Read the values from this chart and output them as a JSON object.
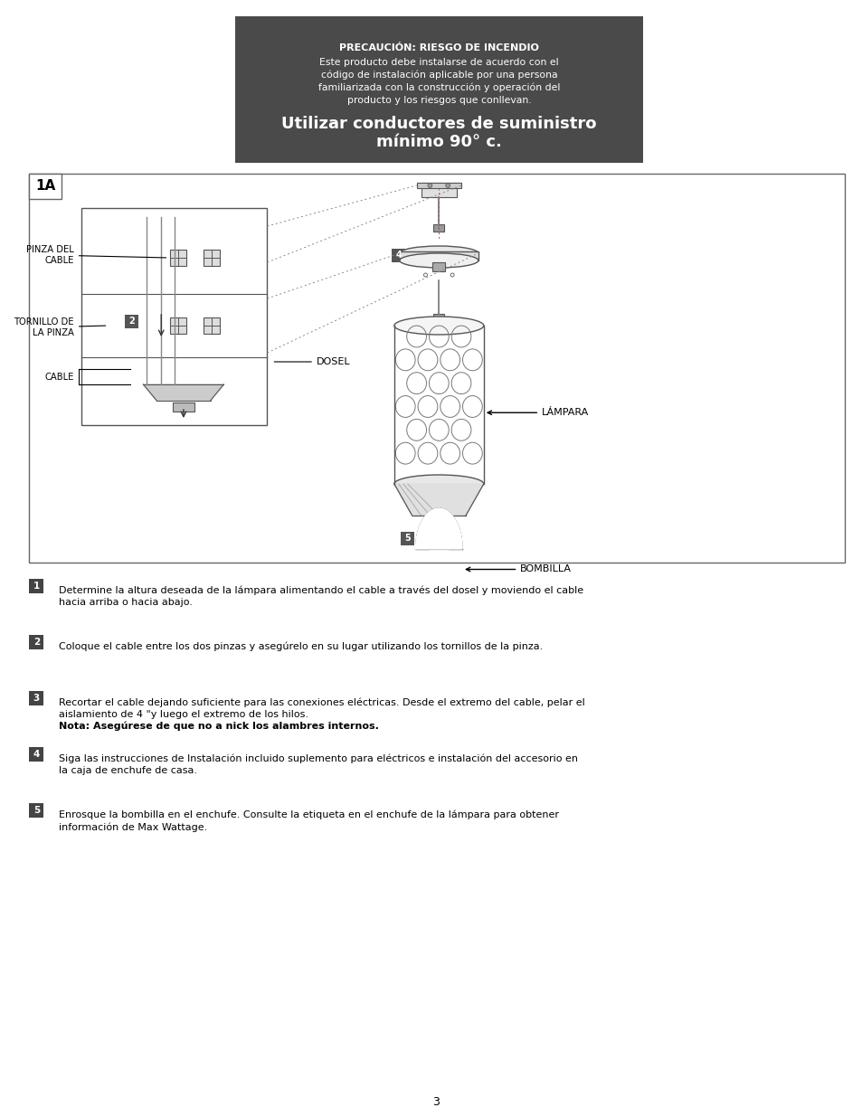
{
  "bg_color": "#ffffff",
  "header_box_color": "#4a4a4a",
  "header_title": "PRECAUCIÓN: RIESGO DE INCENDIO",
  "header_body_line1": "Este producto debe instalarse de acuerdo con el",
  "header_body_line2": "código de instalación aplicable por una persona",
  "header_body_line3": "familiarizada con la construcción y operación del",
  "header_body_line4": "producto y los riesgos que conllevan.",
  "header_large_line1": "Utilizar conductores de suministro",
  "header_large_line2": "mínimo 90° c.",
  "diagram_label": "1A",
  "page_number": "3",
  "label_pinza_del_cable": "PINZA DEL\nCABLE",
  "label_tornillo": "TORNILLO DE\nLA PINZA",
  "label_cable": "CABLE",
  "label_dosel": "DOSEL",
  "label_lampara": "LÁMPARA",
  "label_bombilla": "BOMBILLA",
  "step1_text": "Determine la altura deseada de la lámpara alimentando el cable a través del dosel y moviendo el cable hacia arriba o hacia abajo.",
  "step2_text": "Coloque el cable entre los dos pinzas y asegúrelo en su lugar utilizando los tornillos de la pinza.",
  "step3_pre": "Recortar el cable dejando suficiente para las conexiones eléctricas. Desde el extremo del cable, pelar el aislamiento de 4 \"y luego el extremo de los hilos. ",
  "step3_bold": "Nota: Asegúrese de que no a nick los alambres internos.",
  "step4_text": "Siga las instrucciones de Instalación incluido suplemento para eléctricos e instalación del accesorio en la caja de enchufe de casa.",
  "step5_text": "Enrosque la bombilla en el enchufe. Consulte la etiqueta en el enchufe de la lámpara para obtener información de Max Wattage."
}
